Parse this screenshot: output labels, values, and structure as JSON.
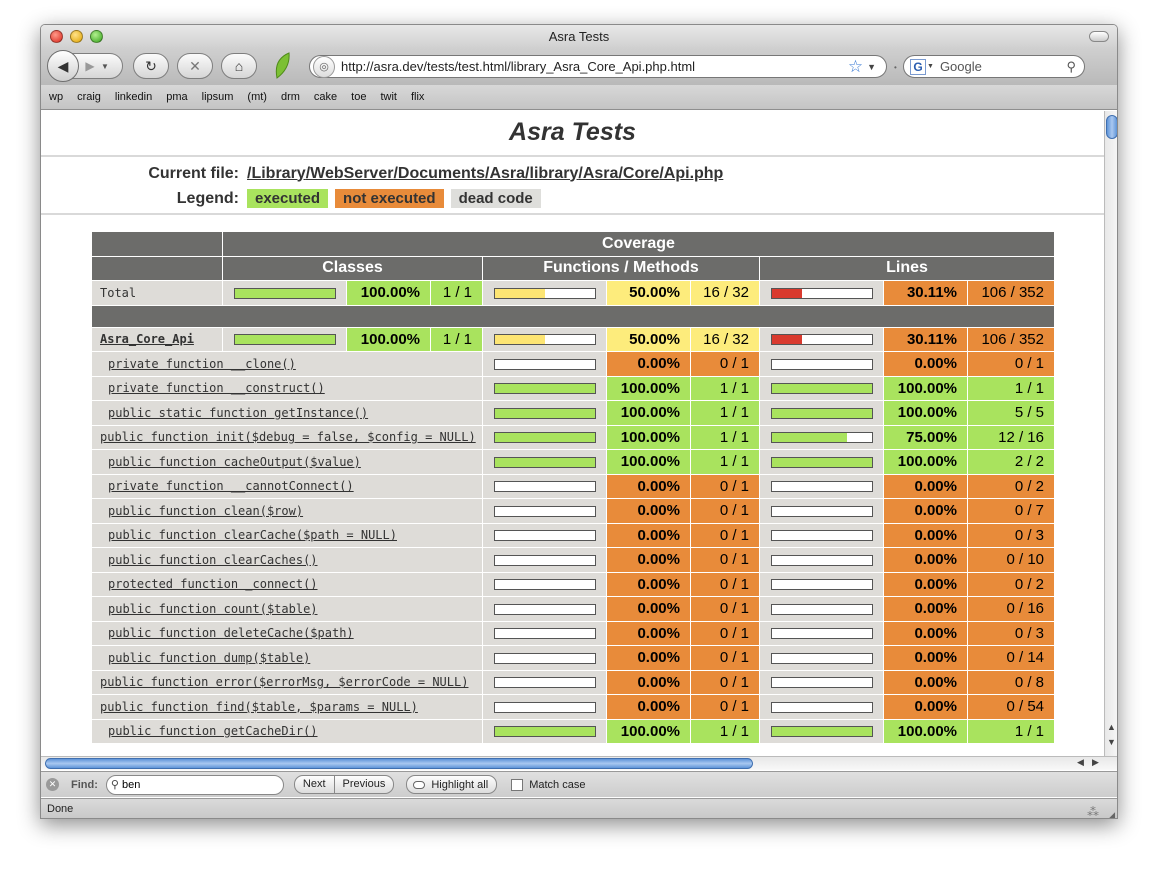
{
  "window": {
    "title": "Asra Tests"
  },
  "toolbar": {
    "url": "http://asra.dev/tests/test.html/library_Asra_Core_Api.php.html",
    "search_placeholder": "Google"
  },
  "bookmarks": [
    "wp",
    "craig",
    "linkedin",
    "pma",
    "lipsum",
    "(mt)",
    "drm",
    "cake",
    "toe",
    "twit",
    "flix"
  ],
  "page": {
    "title": "Asra Tests",
    "current_file_label": "Current file:",
    "path": [
      "/Library",
      "/WebServer",
      "/Documents",
      "/Asra",
      "/library",
      "/Asra",
      "/Core",
      "/Api.php"
    ],
    "legend_label": "Legend:",
    "legend": {
      "executed": "executed",
      "not_executed": "not executed",
      "dead_code": "dead code"
    }
  },
  "table": {
    "headers": {
      "coverage": "Coverage",
      "classes": "Classes",
      "functions": "Functions / Methods",
      "lines": "Lines"
    },
    "total": {
      "name": "Total",
      "classes_frac": 1.0,
      "classes_pct": "100.00%",
      "classes_cnt": "1 / 1",
      "functions_frac": 0.5,
      "functions_pct": "50.00%",
      "functions_cnt": "16 / 32",
      "lines_frac": 0.3011,
      "lines_pct": "30.11%",
      "lines_cnt": "106 / 352"
    },
    "class_row": {
      "name": "Asra_Core_Api",
      "classes_frac": 1.0,
      "classes_pct": "100.00%",
      "classes_cnt": "1 / 1",
      "functions_frac": 0.5,
      "functions_pct": "50.00%",
      "functions_cnt": "16 / 32",
      "lines_frac": 0.3011,
      "lines_pct": "30.11%",
      "lines_cnt": "106 / 352"
    },
    "functions": [
      {
        "name": "private function __clone()",
        "f_frac": 0,
        "f_pct": "0.00%",
        "f_cnt": "0 / 1",
        "l_frac": 0,
        "l_pct": "0.00%",
        "l_cnt": "0 / 1"
      },
      {
        "name": "private function __construct()",
        "f_frac": 1,
        "f_pct": "100.00%",
        "f_cnt": "1 / 1",
        "l_frac": 1,
        "l_pct": "100.00%",
        "l_cnt": "1 / 1"
      },
      {
        "name": "public static function getInstance()",
        "f_frac": 1,
        "f_pct": "100.00%",
        "f_cnt": "1 / 1",
        "l_frac": 1,
        "l_pct": "100.00%",
        "l_cnt": "5 / 5"
      },
      {
        "name": "public function init($debug = false, $config = NULL)",
        "f_frac": 1,
        "f_pct": "100.00%",
        "f_cnt": "1 / 1",
        "l_frac": 0.75,
        "l_pct": "75.00%",
        "l_cnt": "12 / 16"
      },
      {
        "name": "public function cacheOutput($value)",
        "f_frac": 1,
        "f_pct": "100.00%",
        "f_cnt": "1 / 1",
        "l_frac": 1,
        "l_pct": "100.00%",
        "l_cnt": "2 / 2"
      },
      {
        "name": "private function __cannotConnect()",
        "f_frac": 0,
        "f_pct": "0.00%",
        "f_cnt": "0 / 1",
        "l_frac": 0,
        "l_pct": "0.00%",
        "l_cnt": "0 / 2"
      },
      {
        "name": "public function clean($row)",
        "f_frac": 0,
        "f_pct": "0.00%",
        "f_cnt": "0 / 1",
        "l_frac": 0,
        "l_pct": "0.00%",
        "l_cnt": "0 / 7"
      },
      {
        "name": "public function clearCache($path = NULL)",
        "f_frac": 0,
        "f_pct": "0.00%",
        "f_cnt": "0 / 1",
        "l_frac": 0,
        "l_pct": "0.00%",
        "l_cnt": "0 / 3"
      },
      {
        "name": "public function clearCaches()",
        "f_frac": 0,
        "f_pct": "0.00%",
        "f_cnt": "0 / 1",
        "l_frac": 0,
        "l_pct": "0.00%",
        "l_cnt": "0 / 10"
      },
      {
        "name": "protected function _connect()",
        "f_frac": 0,
        "f_pct": "0.00%",
        "f_cnt": "0 / 1",
        "l_frac": 0,
        "l_pct": "0.00%",
        "l_cnt": "0 / 2"
      },
      {
        "name": "public function count($table)",
        "f_frac": 0,
        "f_pct": "0.00%",
        "f_cnt": "0 / 1",
        "l_frac": 0,
        "l_pct": "0.00%",
        "l_cnt": "0 / 16"
      },
      {
        "name": "public function deleteCache($path)",
        "f_frac": 0,
        "f_pct": "0.00%",
        "f_cnt": "0 / 1",
        "l_frac": 0,
        "l_pct": "0.00%",
        "l_cnt": "0 / 3"
      },
      {
        "name": "public function dump($table)",
        "f_frac": 0,
        "f_pct": "0.00%",
        "f_cnt": "0 / 1",
        "l_frac": 0,
        "l_pct": "0.00%",
        "l_cnt": "0 / 14"
      },
      {
        "name": "public function error($errorMsg, $errorCode = NULL)",
        "f_frac": 0,
        "f_pct": "0.00%",
        "f_cnt": "0 / 1",
        "l_frac": 0,
        "l_pct": "0.00%",
        "l_cnt": "0 / 8"
      },
      {
        "name": "public function find($table, $params = NULL)",
        "f_frac": 0,
        "f_pct": "0.00%",
        "f_cnt": "0 / 1",
        "l_frac": 0,
        "l_pct": "0.00%",
        "l_cnt": "0 / 54"
      },
      {
        "name": "public function getCacheDir()",
        "f_frac": 1,
        "f_pct": "100.00%",
        "f_cnt": "1 / 1",
        "l_frac": 1,
        "l_pct": "100.00%",
        "l_cnt": "1 / 1"
      }
    ]
  },
  "findbar": {
    "label": "Find:",
    "value": "ben",
    "next": "Next",
    "previous": "Previous",
    "highlight_all": "Highlight all",
    "match_case": "Match case"
  },
  "status": {
    "text": "Done"
  },
  "colors": {
    "executed": "#a9e35e",
    "not_executed": "#e88b3a",
    "dead_code": "#dededb",
    "header": "#6c6c6a"
  }
}
